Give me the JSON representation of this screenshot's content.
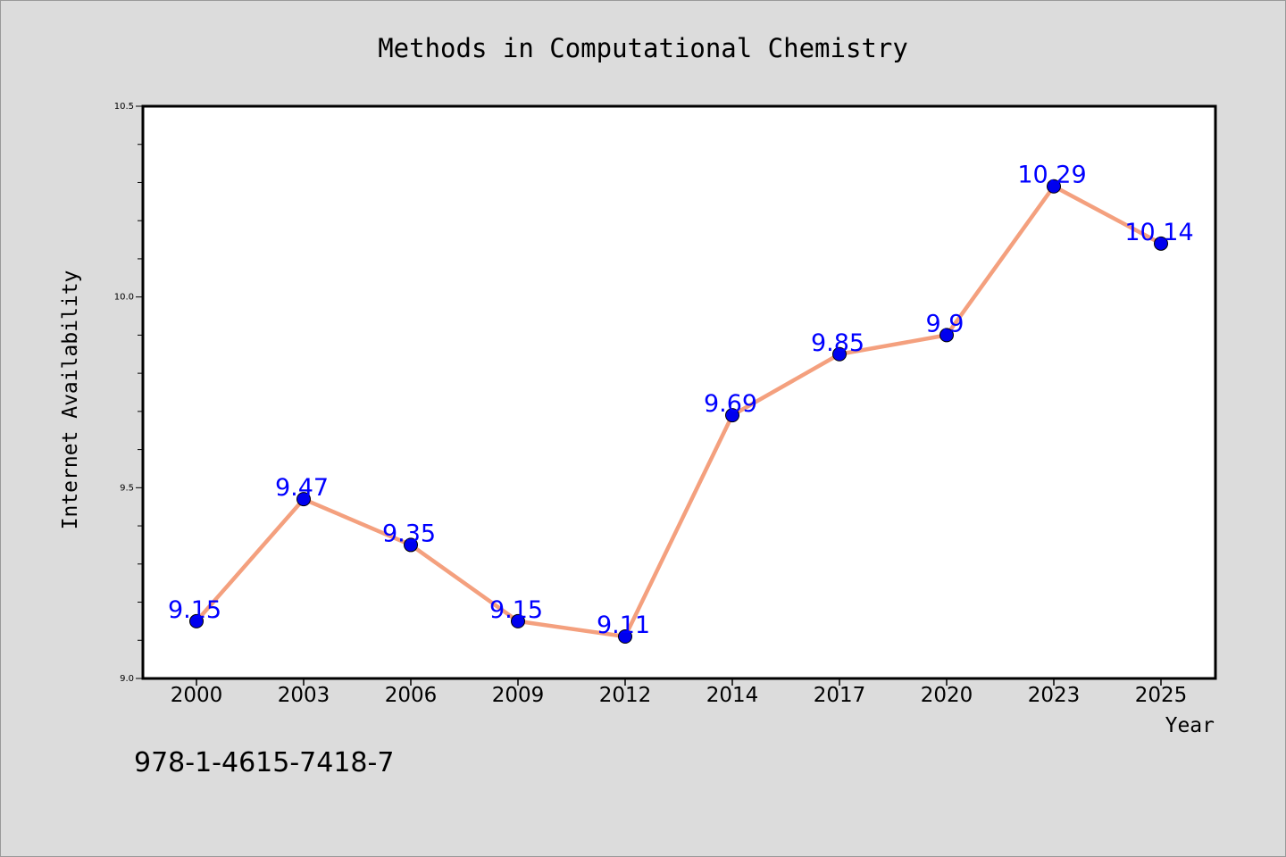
{
  "chart_data": {
    "type": "line",
    "title": "Methods in Computational Chemistry",
    "xlabel": "Year",
    "ylabel": "Internet Availability",
    "categories": [
      "2000",
      "2003",
      "2006",
      "2009",
      "2012",
      "2014",
      "2017",
      "2020",
      "2023",
      "2025"
    ],
    "values": [
      9.15,
      9.47,
      9.35,
      9.15,
      9.11,
      9.69,
      9.85,
      9.9,
      10.29,
      10.14
    ],
    "data_labels": [
      "9.15",
      "9.47",
      "9.35",
      "9.15",
      "9.11",
      "9.69",
      "9.85",
      "9.9",
      "10.29",
      "10.14"
    ],
    "ylim": [
      9.0,
      10.5
    ],
    "yticks": [
      "9.0",
      "9.5",
      "10.0",
      "10.5"
    ],
    "grid": false,
    "legend": "none",
    "line_color": "#f4a07e",
    "marker_color": "#0000ee",
    "label_color": "#0000ff",
    "annotation": "978-1-4615-7418-7"
  }
}
